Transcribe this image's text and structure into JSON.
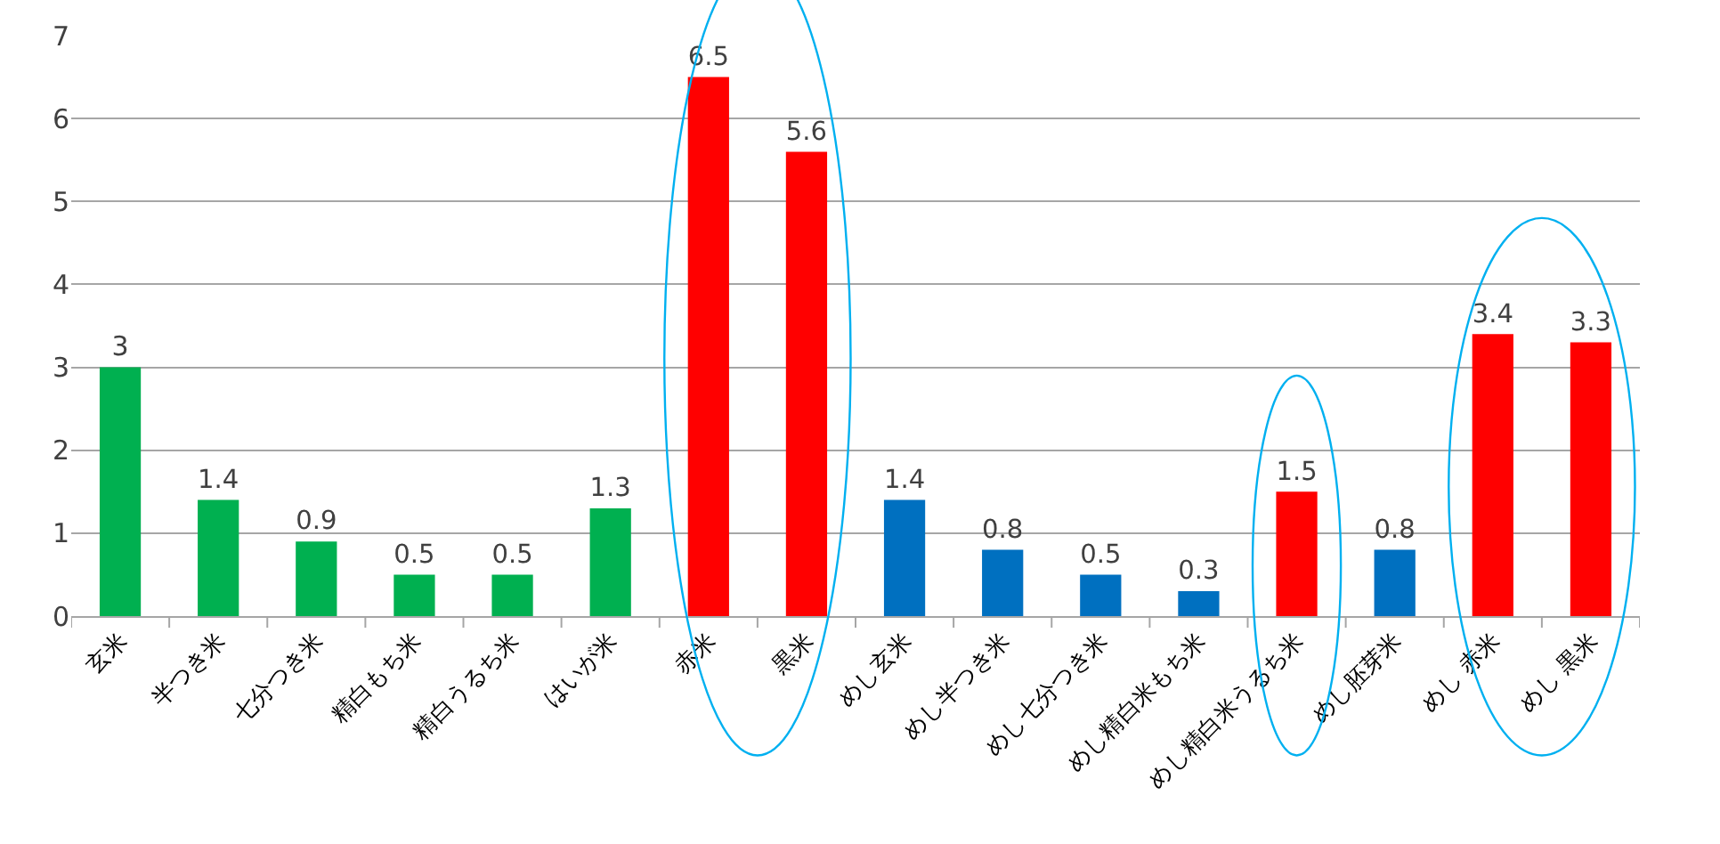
{
  "chart_data": {
    "type": "bar",
    "categories": [
      "玄米",
      "半つき米",
      "七分つき米",
      "精白もち米",
      "精白うるち米",
      "はいが米",
      "赤米",
      "黒米",
      "めし玄米",
      "めし半つき米",
      "めし七分つき米",
      "めし精白米もち米",
      "めし精白米うるち米",
      "めし胚芽米",
      "めし 赤米",
      "めし 黒米"
    ],
    "values": [
      3,
      1.4,
      0.9,
      0.5,
      0.5,
      1.3,
      6.5,
      5.6,
      1.4,
      0.8,
      0.5,
      0.3,
      1.5,
      0.8,
      3.4,
      3.3
    ],
    "colors": [
      "#00b050",
      "#00b050",
      "#00b050",
      "#00b050",
      "#00b050",
      "#00b050",
      "#ff0000",
      "#ff0000",
      "#0070c0",
      "#0070c0",
      "#0070c0",
      "#0070c0",
      "#ff0000",
      "#0070c0",
      "#ff0000",
      "#ff0000"
    ],
    "ylim": [
      0,
      7
    ],
    "yticks": [
      0,
      1,
      2,
      3,
      4,
      5,
      6,
      7
    ],
    "grid": "y",
    "data_labels": true
  }
}
